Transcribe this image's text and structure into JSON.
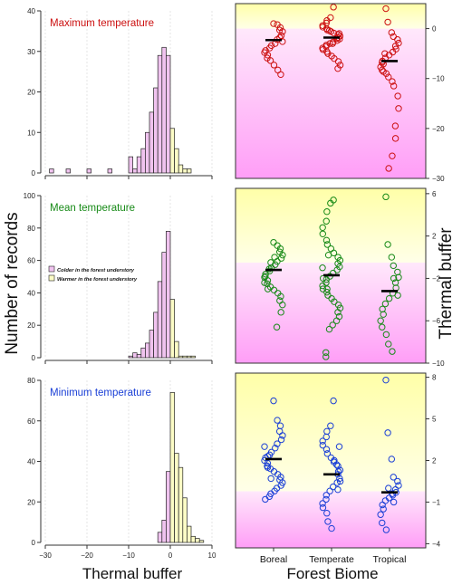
{
  "figure": {
    "y_left_label": "Number of records",
    "y_right_label": "Thermal buffer",
    "x_left_label": "Thermal buffer",
    "x_right_label": "Forest Biome"
  },
  "colors": {
    "colder_fill": "#f0c3ef",
    "warmer_fill": "#fcfcc6",
    "max": "#cc1111",
    "mean": "#178a17",
    "min": "#1a3fd6",
    "bg_yellow": "#ffffa8",
    "bg_pink": "#ff9ef7"
  },
  "chart_data": [
    {
      "type": "bar",
      "panel": "histogram-max",
      "title": "Maximum temperature",
      "title_color": "#cc1111",
      "x_bin_width": 1,
      "xlim": [
        -30,
        10
      ],
      "xticks": [
        -30,
        -20,
        -10,
        0,
        10
      ],
      "ylim": [
        0,
        40
      ],
      "yticks": [
        0,
        10,
        20,
        30,
        40
      ],
      "grid": true,
      "bins": [
        {
          "x0": -29,
          "count": 1
        },
        {
          "x0": -25,
          "count": 1
        },
        {
          "x0": -20,
          "count": 1
        },
        {
          "x0": -15,
          "count": 1
        },
        {
          "x0": -10,
          "count": 4
        },
        {
          "x0": -9,
          "count": 1
        },
        {
          "x0": -8,
          "count": 4
        },
        {
          "x0": -7,
          "count": 6
        },
        {
          "x0": -6,
          "count": 10
        },
        {
          "x0": -5,
          "count": 15
        },
        {
          "x0": -4,
          "count": 21
        },
        {
          "x0": -3,
          "count": 29
        },
        {
          "x0": -2,
          "count": 31
        },
        {
          "x0": -1,
          "count": 29
        },
        {
          "x0": 0,
          "count": 11
        },
        {
          "x0": 1,
          "count": 6
        },
        {
          "x0": 2,
          "count": 2
        },
        {
          "x0": 3,
          "count": 1
        },
        {
          "x0": 4,
          "count": 1
        }
      ]
    },
    {
      "type": "bar",
      "panel": "histogram-mean",
      "title": "Mean temperature",
      "title_color": "#178a17",
      "x_bin_width": 1,
      "xlim": [
        -30,
        10
      ],
      "xticks": [
        -30,
        -20,
        -10,
        0,
        10
      ],
      "ylim": [
        0,
        100
      ],
      "yticks": [
        0,
        20,
        40,
        60,
        80,
        100
      ],
      "grid": true,
      "legend": [
        {
          "label": "Colder in the forest understory",
          "color": "#f0c3ef"
        },
        {
          "label": "Warmer in the forest understory",
          "color": "#fcfcc6"
        }
      ],
      "bins": [
        {
          "x0": -10,
          "count": 1
        },
        {
          "x0": -9,
          "count": 3
        },
        {
          "x0": -8,
          "count": 2
        },
        {
          "x0": -7,
          "count": 6
        },
        {
          "x0": -6,
          "count": 9
        },
        {
          "x0": -5,
          "count": 17
        },
        {
          "x0": -4,
          "count": 28
        },
        {
          "x0": -3,
          "count": 47
        },
        {
          "x0": -2,
          "count": 65
        },
        {
          "x0": -1,
          "count": 78
        },
        {
          "x0": 0,
          "count": 36
        },
        {
          "x0": 1,
          "count": 10
        },
        {
          "x0": 2,
          "count": 1
        },
        {
          "x0": 3,
          "count": 1
        },
        {
          "x0": 4,
          "count": 1
        },
        {
          "x0": 5,
          "count": 1
        }
      ]
    },
    {
      "type": "bar",
      "panel": "histogram-min",
      "title": "Minimum temperature",
      "title_color": "#1a3fd6",
      "x_bin_width": 1,
      "xlim": [
        -30,
        10
      ],
      "xticks": [
        -30,
        -20,
        -10,
        0,
        10
      ],
      "ylim": [
        0,
        80
      ],
      "yticks": [
        0,
        20,
        40,
        60,
        80
      ],
      "grid": true,
      "bins": [
        {
          "x0": -3,
          "count": 5
        },
        {
          "x0": -2,
          "count": 11
        },
        {
          "x0": -1,
          "count": 35
        },
        {
          "x0": 0,
          "count": 74
        },
        {
          "x0": 1,
          "count": 44
        },
        {
          "x0": 2,
          "count": 37
        },
        {
          "x0": 3,
          "count": 22
        },
        {
          "x0": 4,
          "count": 8
        },
        {
          "x0": 5,
          "count": 3
        },
        {
          "x0": 6,
          "count": 2
        },
        {
          "x0": 7,
          "count": 1
        }
      ]
    },
    {
      "type": "scatter",
      "panel": "strip-max",
      "categories": [
        "Boreal",
        "Temperate",
        "Tropical"
      ],
      "ylim": [
        -30,
        5
      ],
      "yticks": [
        0,
        -10,
        -20,
        -30
      ],
      "color": "#cc1111",
      "background_split": 0,
      "means": [
        -2.3,
        -1.8,
        -6.5
      ],
      "points": [
        [
          1.0,
          0.8,
          0.2,
          -0.3,
          -0.6,
          -1.4,
          -2.2,
          -3.0,
          -3.4,
          -3.9,
          -4.4,
          -4.8,
          -5.3,
          -5.9,
          -6.4,
          -7.3,
          -8.3,
          -9.2,
          -1.8,
          -2.6
        ],
        [
          4.3,
          2.2,
          1.6,
          1.1,
          0.6,
          0.3,
          0.0,
          -0.3,
          -0.6,
          -0.9,
          -1.2,
          -1.5,
          -1.8,
          -2.1,
          -2.4,
          -2.7,
          -3.0,
          -3.3,
          -3.6,
          -3.9,
          -4.2,
          -4.6,
          -5.0,
          -5.5,
          -6.0,
          -6.6,
          -7.3,
          -8.0,
          -1.0,
          -2.0,
          -3.0,
          -0.4
        ],
        [
          4.0,
          1.3,
          -0.8,
          -1.6,
          -2.2,
          -2.9,
          -3.5,
          -4.1,
          -4.7,
          -5.3,
          -5.9,
          -6.5,
          -7.1,
          -7.7,
          -8.3,
          -9.0,
          -9.7,
          -10.6,
          -11.5,
          -13.5,
          -16.0,
          -19.5,
          -22.0,
          -25.5,
          -28.0,
          -5.0,
          -6.8,
          -8.6
        ]
      ]
    },
    {
      "type": "scatter",
      "panel": "strip-mean",
      "categories": [
        "Boreal",
        "Temperate",
        "Tropical"
      ],
      "ylim": [
        -10,
        6.5
      ],
      "yticks": [
        6,
        2,
        -2,
        -6,
        -10
      ],
      "color": "#178a17",
      "background_split": -0.5,
      "means": [
        -1.2,
        -1.7,
        -3.2
      ],
      "points": [
        [
          1.4,
          1.1,
          0.8,
          0.5,
          0.2,
          -0.1,
          -0.4,
          -0.7,
          -1.0,
          -1.3,
          -1.6,
          -1.9,
          -2.2,
          -2.5,
          -2.8,
          -3.1,
          -3.4,
          -3.7,
          -4.1,
          -4.5,
          -5.2,
          -6.6,
          0.0,
          -0.5,
          -1.1,
          -1.8,
          -2.4,
          -3.0
        ],
        [
          5.4,
          5.1,
          4.3,
          3.4,
          2.8,
          2.2,
          1.6,
          1.2,
          0.8,
          0.4,
          0.0,
          -0.3,
          -0.6,
          -0.9,
          -1.2,
          -1.5,
          -1.8,
          -2.1,
          -2.4,
          -2.7,
          -3.0,
          -3.3,
          -3.6,
          -3.9,
          -4.2,
          -4.5,
          -4.8,
          -5.2,
          -5.6,
          -6.0,
          -6.4,
          -6.8,
          -9.0,
          -9.4,
          -1.0,
          -2.0,
          -3.0,
          0.2
        ],
        [
          5.7,
          1.2,
          0.0,
          -0.8,
          -1.4,
          -1.9,
          -2.4,
          -2.9,
          -3.4,
          -3.9,
          -4.4,
          -4.9,
          -5.4,
          -6.0,
          -6.6,
          -7.3,
          -8.2,
          -8.9,
          -2.0,
          -3.6
        ]
      ]
    },
    {
      "type": "scatter",
      "panel": "strip-min",
      "categories": [
        "Boreal",
        "Temperate",
        "Tropical"
      ],
      "ylim": [
        -4.3,
        8.3
      ],
      "yticks": [
        8,
        5,
        2,
        -1,
        -4
      ],
      "color": "#1a3fd6",
      "background_split": -0.2,
      "means": [
        2.1,
        1.0,
        -0.3
      ],
      "points": [
        [
          6.3,
          4.9,
          4.5,
          4.1,
          3.8,
          3.5,
          3.2,
          2.9,
          2.6,
          2.4,
          2.2,
          2.0,
          1.8,
          1.6,
          1.4,
          1.2,
          1.0,
          0.8,
          0.6,
          0.4,
          0.2,
          0.0,
          -0.2,
          -0.4,
          -0.6,
          -0.8,
          3.0,
          2.3,
          1.5,
          0.7
        ],
        [
          6.3,
          4.5,
          4.1,
          3.7,
          3.4,
          3.1,
          2.8,
          2.5,
          2.2,
          1.9,
          1.6,
          1.3,
          1.0,
          0.7,
          0.4,
          0.1,
          -0.2,
          -0.5,
          -0.8,
          -1.1,
          -1.4,
          -1.8,
          -2.4,
          -2.9,
          2.0,
          1.2,
          0.5,
          -0.1,
          3.0,
          1.7
        ],
        [
          7.8,
          4.0,
          2.1,
          0.8,
          0.5,
          0.2,
          -0.1,
          -0.3,
          -0.5,
          -0.7,
          -0.9,
          -1.2,
          -1.5,
          -1.9,
          -2.5,
          -3.0,
          0.0,
          -0.4,
          -1.0
        ]
      ]
    }
  ]
}
